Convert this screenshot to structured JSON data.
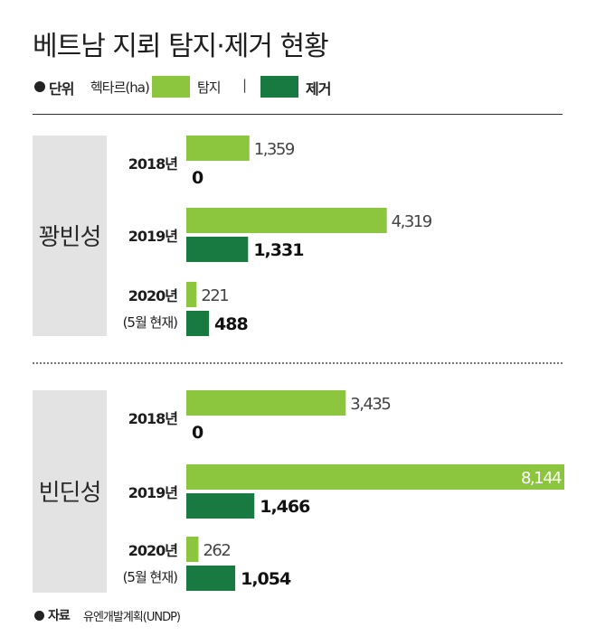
{
  "title": "베트남 지뢰 탐지·제거 현황",
  "legend": {
    "unit_head": "단위",
    "unit_text": "헥타르(ha)",
    "detect_label": "탐지",
    "separator": "|",
    "remove_label": "제거"
  },
  "source": {
    "head": "자료",
    "text": "유엔개발계획(UNDP)"
  },
  "chart_data": {
    "type": "bar",
    "orientation": "horizontal",
    "unit": "헥타르(ha)",
    "series_colors": {
      "탐지": "#8cc63f",
      "제거": "#187a40"
    },
    "groups": [
      {
        "name": "꽝빈성",
        "rows": [
          {
            "year": "2018년",
            "note": "",
            "detect": 1359,
            "detect_label": "1,359",
            "remove": 0,
            "remove_label": "0"
          },
          {
            "year": "2019년",
            "note": "",
            "detect": 4319,
            "detect_label": "4,319",
            "remove": 1331,
            "remove_label": "1,331"
          },
          {
            "year": "2020년",
            "note": "(5월 현재)",
            "detect": 221,
            "detect_label": "221",
            "remove": 488,
            "remove_label": "488"
          }
        ]
      },
      {
        "name": "빈딘성",
        "rows": [
          {
            "year": "2018년",
            "note": "",
            "detect": 3435,
            "detect_label": "3,435",
            "remove": 0,
            "remove_label": "0"
          },
          {
            "year": "2019년",
            "note": "",
            "detect": 8144,
            "detect_label": "8,144",
            "remove": 1466,
            "remove_label": "1,466"
          },
          {
            "year": "2020년",
            "note": "(5월 현재)",
            "detect": 262,
            "detect_label": "262",
            "remove": 1054,
            "remove_label": "1,054"
          }
        ]
      }
    ],
    "xmax": 8144
  }
}
